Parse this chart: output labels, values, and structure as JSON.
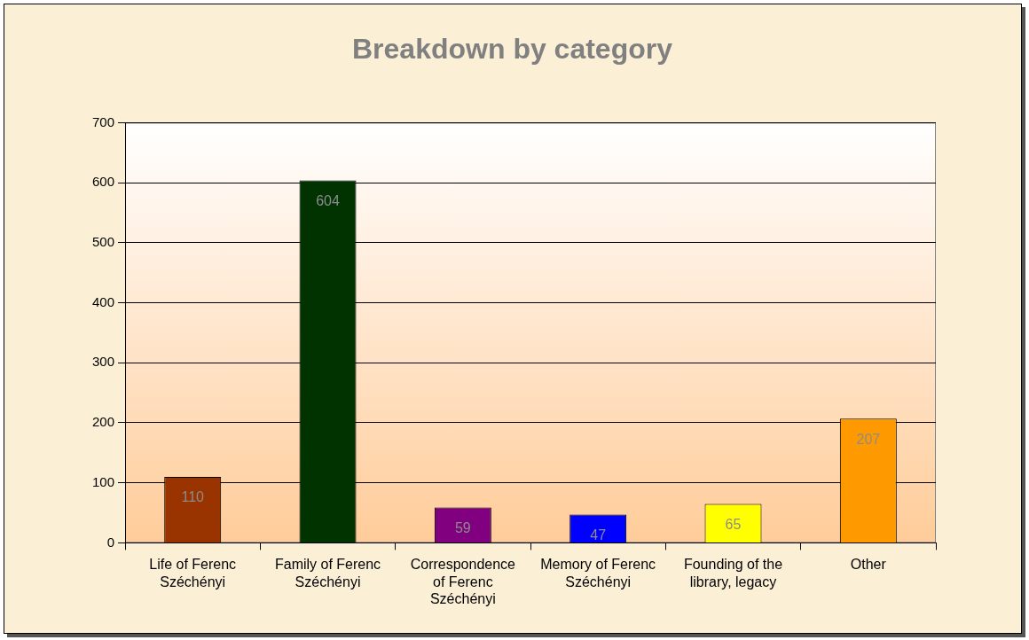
{
  "chart_data": {
    "type": "bar",
    "title": "Breakdown by category",
    "categories": [
      "Life of Ferenc Széchényi",
      "Family of Ferenc Széchényi",
      "Correspondence of Ferenc Széchényi",
      "Memory of Ferenc Széchényi",
      "Founding of the library, legacy",
      "Other"
    ],
    "values": [
      110,
      604,
      59,
      47,
      65,
      207
    ],
    "colors": [
      "#993300",
      "#003300",
      "#800080",
      "#0000ff",
      "#ffff00",
      "#ff9900"
    ],
    "ylim": [
      0,
      700
    ],
    "yticks": [
      0,
      100,
      200,
      300,
      400,
      500,
      600,
      700
    ],
    "grid": "y",
    "data_labels": true
  }
}
